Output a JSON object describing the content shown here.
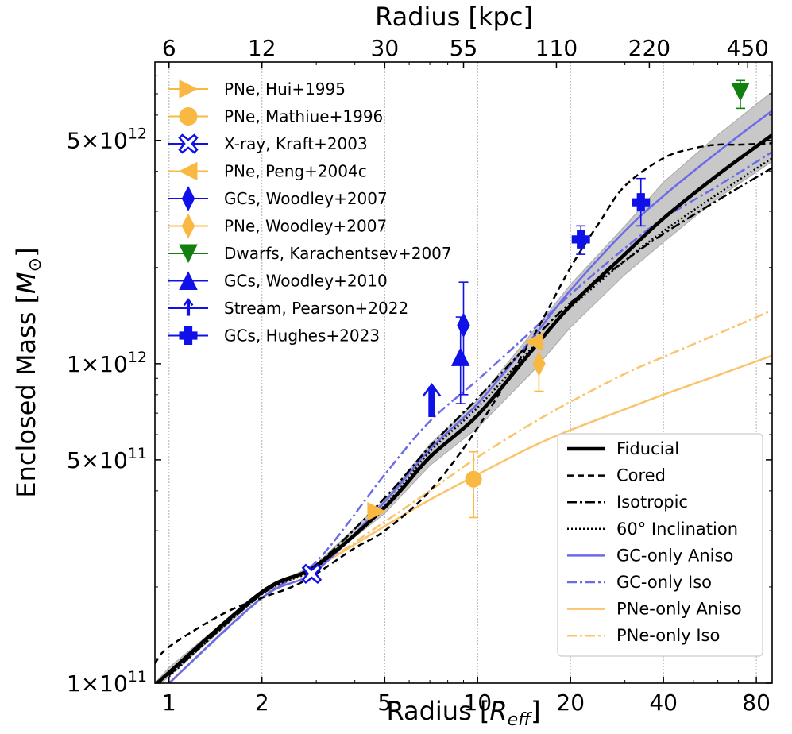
{
  "chart_data": {
    "type": "line",
    "xlabel": "Radius [R_eff]",
    "xlabel_parts": [
      "Radius [",
      "R",
      "eff",
      "]"
    ],
    "top_xlabel": "Radius [kpc]",
    "ylabel": "Enclosed Mass [M⊙]",
    "ylabel_parts": [
      "Enclosed Mass [",
      "M",
      "⊙",
      "]"
    ],
    "x_scale": "log",
    "y_scale": "log",
    "xlim": [
      0.9,
      90
    ],
    "ylim": [
      100000000000.0,
      8800000000000.0
    ],
    "x_ticks": [
      1,
      2,
      5,
      10,
      20,
      40,
      80
    ],
    "x_tick_labels": [
      "1",
      "2",
      "5",
      "10",
      "20",
      "40",
      "80"
    ],
    "top_ticks": [
      1,
      2,
      5,
      9,
      18,
      36,
      75
    ],
    "top_tick_labels": [
      "6",
      "12",
      "30",
      "55",
      "110",
      "220",
      "450"
    ],
    "y_ticks": [
      100000000000.0,
      500000000000.0,
      1000000000000.0,
      5000000000000.0
    ],
    "y_tick_labels": [
      {
        "mant": "1",
        "exp": "11"
      },
      {
        "mant": "5",
        "exp": "11"
      },
      {
        "mant": "1",
        "exp": "12"
      },
      {
        "mant": "5",
        "exp": "12"
      }
    ],
    "grid": "vertical dotted at major x ticks",
    "band": {
      "name": "Fiducial uncertainty",
      "color": "#c8c8c8",
      "x": [
        0.9,
        1,
        2,
        3,
        5,
        7,
        10,
        15,
        20,
        30,
        40,
        60,
        90
      ],
      "lower": [
        96000000000.0,
        105000000000.0,
        190000000000.0,
        230000000000.0,
        340000000000.0,
        480000000000.0,
        630000000000.0,
        940000000000.0,
        1300000000000.0,
        1900000000000.0,
        2400000000000.0,
        3300000000000.0,
        4300000000000.0
      ],
      "upper": [
        100000000000.0,
        112000000000.0,
        195000000000.0,
        236000000000.0,
        375000000000.0,
        560000000000.0,
        770000000000.0,
        1250000000000.0,
        1770000000000.0,
        2700000000000.0,
        3700000000000.0,
        5200000000000.0,
        7100000000000.0
      ]
    },
    "series": [
      {
        "name": "Fiducial",
        "legend": "Fiducial",
        "color": "#000000",
        "dash": "solid",
        "width": 4.5,
        "x": [
          0.9,
          1,
          2,
          3,
          5,
          7,
          10,
          15,
          20,
          30,
          40,
          60,
          90
        ],
        "y": [
          98000000000.0,
          108000000000.0,
          193000000000.0,
          233000000000.0,
          355000000000.0,
          510000000000.0,
          690000000000.0,
          1100000000000.0,
          1520000000000.0,
          2200000000000.0,
          2850000000000.0,
          3900000000000.0,
          5200000000000.0
        ]
      },
      {
        "name": "Cored",
        "legend": "Cored",
        "color": "#000000",
        "dash": "8,5",
        "width": 2.5,
        "x": [
          0.9,
          1,
          1.5,
          2,
          2.5,
          3,
          4,
          5,
          7,
          10,
          15,
          20,
          25,
          30,
          40,
          50,
          60,
          70,
          90
        ],
        "y": [
          115000000000.0,
          130000000000.0,
          165000000000.0,
          185000000000.0,
          200000000000.0,
          220000000000.0,
          265000000000.0,
          300000000000.0,
          400000000000.0,
          630000000000.0,
          1200000000000.0,
          2000000000000.0,
          2800000000000.0,
          3600000000000.0,
          4400000000000.0,
          4720000000000.0,
          4850000000000.0,
          4850000000000.0,
          4900000000000.0
        ]
      },
      {
        "name": "Isotropic",
        "legend": "Isotropic",
        "color": "#000000",
        "dash": "12,4,3,4",
        "width": 2.5,
        "x": [
          1,
          2,
          3,
          5,
          7,
          10,
          15,
          20,
          30,
          40,
          60,
          90
        ],
        "y": [
          106000000000.0,
          190000000000.0,
          235000000000.0,
          380000000000.0,
          550000000000.0,
          780000000000.0,
          1180000000000.0,
          1550000000000.0,
          2100000000000.0,
          2550000000000.0,
          3250000000000.0,
          4100000000000.0
        ]
      },
      {
        "name": "60° Inclination",
        "legend": "60° Inclination",
        "color": "#000000",
        "dash": "2,3",
        "width": 2.5,
        "x": [
          1,
          2,
          3,
          5,
          7,
          10,
          15,
          20,
          30,
          40,
          60,
          90
        ],
        "y": [
          105000000000.0,
          190000000000.0,
          230000000000.0,
          360000000000.0,
          530000000000.0,
          730000000000.0,
          1120000000000.0,
          1500000000000.0,
          2100000000000.0,
          2600000000000.0,
          3400000000000.0,
          4400000000000.0
        ]
      },
      {
        "name": "GC-only Aniso",
        "legend": "GC-only Aniso",
        "color": "#6b6bea",
        "dash": "solid",
        "width": 2.5,
        "x": [
          1,
          2,
          3,
          5,
          7,
          10,
          15,
          20,
          30,
          40,
          60,
          90
        ],
        "y": [
          100000000000.0,
          185000000000.0,
          225000000000.0,
          370000000000.0,
          540000000000.0,
          750000000000.0,
          1200000000000.0,
          1700000000000.0,
          2600000000000.0,
          3350000000000.0,
          4600000000000.0,
          6200000000000.0
        ]
      },
      {
        "name": "GC-only Iso",
        "legend": "GC-only Iso",
        "color": "#6b6bea",
        "dash": "12,4,3,4",
        "width": 2.5,
        "x": [
          1,
          2,
          3,
          5,
          7,
          10,
          15,
          20,
          30,
          40,
          60,
          90
        ],
        "y": [
          100000000000.0,
          185000000000.0,
          240000000000.0,
          450000000000.0,
          660000000000.0,
          890000000000.0,
          1270000000000.0,
          1650000000000.0,
          2300000000000.0,
          2850000000000.0,
          3600000000000.0,
          4600000000000.0
        ]
      },
      {
        "name": "PNe-only Aniso",
        "legend": "PNe-only Aniso",
        "color": "#f9c46b",
        "dash": "solid",
        "width": 2.5,
        "x": [
          1,
          2,
          3,
          5,
          7,
          10,
          15,
          20,
          30,
          40,
          60,
          90
        ],
        "y": [
          100000000000.0,
          185000000000.0,
          230000000000.0,
          310000000000.0,
          375000000000.0,
          450000000000.0,
          550000000000.0,
          620000000000.0,
          720000000000.0,
          800000000000.0,
          920000000000.0,
          1060000000000.0
        ]
      },
      {
        "name": "PNe-only Iso",
        "legend": "PNe-only Iso",
        "color": "#f9c46b",
        "dash": "12,4,3,4",
        "width": 2.5,
        "x": [
          1,
          2,
          3,
          5,
          7,
          10,
          15,
          20,
          30,
          40,
          60,
          90
        ],
        "y": [
          100000000000.0,
          185000000000.0,
          230000000000.0,
          320000000000.0,
          400000000000.0,
          510000000000.0,
          650000000000.0,
          760000000000.0,
          930000000000.0,
          1050000000000.0,
          1240000000000.0,
          1470000000000.0
        ]
      }
    ],
    "observations": [
      {
        "legend": "PNe, Hui+1995",
        "color": "#f9b842",
        "marker": "triangle-right",
        "x": 4.7,
        "y": 345000000000.0,
        "err_low": null,
        "err_high": null
      },
      {
        "legend": "PNe, Mathiue+1996",
        "color": "#f9b842",
        "marker": "circle",
        "x": 9.7,
        "y": 435000000000.0,
        "err_low": 330000000000.0,
        "err_high": 530000000000.0
      },
      {
        "legend": "X-ray, Kraft+2003",
        "color": "#1010e8",
        "marker": "x-open",
        "x": 2.9,
        "y": 220000000000.0,
        "err_low": null,
        "err_high": null
      },
      {
        "legend": "PNe, Peng+2004c",
        "color": "#f9b842",
        "marker": "triangle-left",
        "x": 15.2,
        "y": 1170000000000.0,
        "err_low": null,
        "err_high": null
      },
      {
        "legend": "GCs, Woodley+2007",
        "color": "#1010e8",
        "marker": "diamond",
        "x": 9.0,
        "y": 1320000000000.0,
        "err_low": 800000000000.0,
        "err_high": 1800000000000.0
      },
      {
        "legend": "PNe, Woodley+2007",
        "color": "#f9b842",
        "marker": "diamond",
        "x": 15.8,
        "y": 1000000000000.0,
        "err_low": 820000000000.0,
        "err_high": 1150000000000.0
      },
      {
        "legend": "Dwarfs, Karachentsev+2007",
        "color": "#118011",
        "marker": "triangle-down",
        "x": 71.0,
        "y": 7100000000000.0,
        "err_low": 6300000000000.0,
        "err_high": 7700000000000.0
      },
      {
        "legend": "GCs, Woodley+2010",
        "color": "#1010e8",
        "marker": "triangle-up",
        "x": 8.8,
        "y": 1050000000000.0,
        "err_low": 750000000000.0,
        "err_high": 1400000000000.0
      },
      {
        "legend": "Stream, Pearson+2022",
        "color": "#1010e8",
        "marker": "arrow-up",
        "x": 7.1,
        "y": 760000000000.0,
        "err_low": null,
        "err_high": null
      },
      {
        "legend": "GCs, Hughes+2023",
        "color": "#1010e8",
        "marker": "plus",
        "x": 21.6,
        "y": 2450000000000.0,
        "err_low": 2200000000000.0,
        "err_high": 2700000000000.0
      },
      {
        "legend": "GCs, Hughes+2023",
        "color": "#1010e8",
        "marker": "plus",
        "x": 33.8,
        "y": 3200000000000.0,
        "err_low": 2700000000000.0,
        "err_high": 3800000000000.0
      }
    ],
    "legend_observations_placement": "top-left",
    "legend_models_placement": "bottom-right"
  }
}
